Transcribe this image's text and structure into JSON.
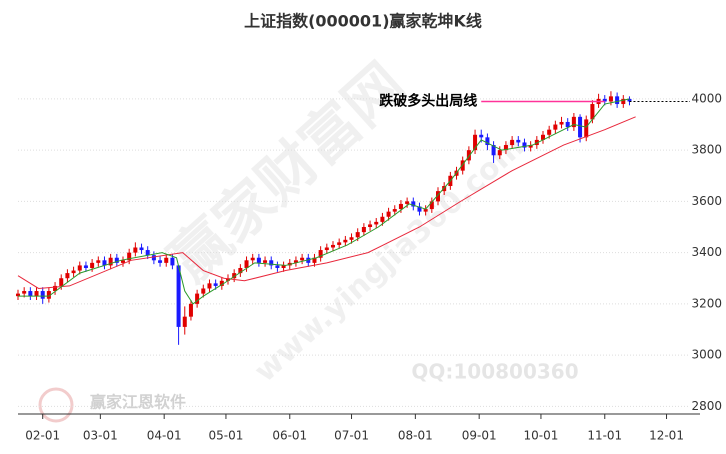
{
  "chart_data": {
    "type": "candlestick",
    "title": "上证指数(000001)赢家乾坤K线",
    "xlim": [
      20,
      360
    ],
    "ylim": [
      2770,
      4230
    ],
    "xticks": [
      {
        "value": 32,
        "label": "02-01"
      },
      {
        "value": 60,
        "label": "03-01"
      },
      {
        "value": 91,
        "label": "04-01"
      },
      {
        "value": 121,
        "label": "05-01"
      },
      {
        "value": 152,
        "label": "06-01"
      },
      {
        "value": 182,
        "label": "07-01"
      },
      {
        "value": 213,
        "label": "08-01"
      },
      {
        "value": 244,
        "label": "09-01"
      },
      {
        "value": 274,
        "label": "10-01"
      },
      {
        "value": 305,
        "label": "11-01"
      },
      {
        "value": 335,
        "label": "12-01"
      }
    ],
    "yticks": [
      2800,
      3000,
      3200,
      3400,
      3600,
      3800,
      4000
    ],
    "grid": true,
    "up_color": "#e00000",
    "down_color": "#1a1aff",
    "x": [
      20,
      23,
      26,
      29,
      32,
      35,
      38,
      41,
      44,
      47,
      50,
      53,
      56,
      59,
      62,
      65,
      68,
      71,
      74,
      77,
      80,
      83,
      86,
      89,
      92,
      95,
      98,
      101,
      104,
      107,
      110,
      113,
      116,
      119,
      122,
      125,
      128,
      131,
      134,
      137,
      140,
      143,
      146,
      149,
      152,
      155,
      158,
      161,
      164,
      167,
      170,
      173,
      176,
      179,
      182,
      185,
      188,
      191,
      194,
      197,
      200,
      203,
      206,
      209,
      212,
      215,
      218,
      221,
      224,
      227,
      230,
      233,
      236,
      239,
      242,
      245,
      248,
      251,
      254,
      257,
      260,
      263,
      266,
      269,
      272,
      275,
      278,
      281,
      284,
      287,
      290,
      293,
      296,
      299,
      302,
      305,
      308,
      311,
      314,
      317
    ],
    "open": [
      3230,
      3240,
      3250,
      3230,
      3250,
      3220,
      3250,
      3270,
      3300,
      3320,
      3330,
      3350,
      3340,
      3360,
      3370,
      3350,
      3380,
      3360,
      3370,
      3400,
      3420,
      3410,
      3390,
      3370,
      3360,
      3380,
      3350,
      3110,
      3150,
      3200,
      3240,
      3260,
      3280,
      3270,
      3290,
      3300,
      3320,
      3340,
      3370,
      3380,
      3360,
      3370,
      3350,
      3340,
      3350,
      3360,
      3370,
      3380,
      3360,
      3380,
      3410,
      3420,
      3430,
      3440,
      3450,
      3460,
      3480,
      3500,
      3510,
      3520,
      3540,
      3560,
      3570,
      3590,
      3600,
      3580,
      3560,
      3570,
      3600,
      3640,
      3660,
      3700,
      3720,
      3760,
      3800,
      3860,
      3850,
      3820,
      3780,
      3800,
      3820,
      3840,
      3830,
      3810,
      3820,
      3840,
      3860,
      3880,
      3900,
      3910,
      3890,
      3930,
      3850,
      3920,
      3980,
      4000,
      3990,
      4010,
      3980,
      4000
    ],
    "high": [
      3255,
      3265,
      3265,
      3265,
      3265,
      3265,
      3285,
      3315,
      3335,
      3345,
      3365,
      3365,
      3375,
      3385,
      3385,
      3395,
      3395,
      3385,
      3415,
      3440,
      3435,
      3425,
      3405,
      3385,
      3395,
      3395,
      3350,
      3190,
      3215,
      3255,
      3275,
      3295,
      3295,
      3305,
      3315,
      3335,
      3355,
      3385,
      3395,
      3395,
      3385,
      3385,
      3365,
      3365,
      3375,
      3385,
      3395,
      3395,
      3395,
      3425,
      3435,
      3445,
      3455,
      3465,
      3475,
      3495,
      3515,
      3525,
      3535,
      3555,
      3575,
      3585,
      3605,
      3615,
      3615,
      3595,
      3585,
      3615,
      3655,
      3675,
      3715,
      3735,
      3775,
      3815,
      3880,
      3880,
      3865,
      3835,
      3815,
      3835,
      3855,
      3855,
      3845,
      3835,
      3855,
      3875,
      3895,
      3915,
      3930,
      3925,
      3945,
      3940,
      3935,
      3995,
      4020,
      4015,
      4030,
      4025,
      4015,
      4010
    ],
    "low": [
      3215,
      3225,
      3215,
      3215,
      3200,
      3205,
      3235,
      3255,
      3285,
      3305,
      3315,
      3325,
      3325,
      3345,
      3335,
      3335,
      3345,
      3345,
      3355,
      3385,
      3395,
      3375,
      3355,
      3345,
      3345,
      3335,
      3040,
      3080,
      3135,
      3185,
      3225,
      3245,
      3255,
      3255,
      3275,
      3285,
      3305,
      3325,
      3355,
      3345,
      3345,
      3335,
      3325,
      3325,
      3335,
      3345,
      3355,
      3345,
      3345,
      3365,
      3395,
      3405,
      3415,
      3425,
      3435,
      3445,
      3465,
      3485,
      3495,
      3505,
      3525,
      3545,
      3555,
      3575,
      3565,
      3545,
      3545,
      3555,
      3585,
      3625,
      3645,
      3685,
      3705,
      3745,
      3785,
      3830,
      3800,
      3750,
      3765,
      3785,
      3805,
      3815,
      3795,
      3795,
      3805,
      3825,
      3845,
      3865,
      3885,
      3875,
      3875,
      3830,
      3835,
      3905,
      3965,
      3975,
      3975,
      3965,
      3965,
      3975
    ],
    "close": [
      3240,
      3250,
      3230,
      3250,
      3220,
      3250,
      3270,
      3300,
      3320,
      3330,
      3350,
      3340,
      3360,
      3370,
      3350,
      3380,
      3360,
      3370,
      3400,
      3420,
      3410,
      3390,
      3370,
      3360,
      3380,
      3350,
      3110,
      3150,
      3200,
      3240,
      3260,
      3280,
      3270,
      3290,
      3300,
      3320,
      3340,
      3370,
      3380,
      3360,
      3370,
      3350,
      3340,
      3350,
      3360,
      3370,
      3380,
      3360,
      3380,
      3410,
      3420,
      3430,
      3440,
      3450,
      3460,
      3480,
      3500,
      3510,
      3520,
      3540,
      3560,
      3570,
      3590,
      3600,
      3580,
      3560,
      3570,
      3600,
      3640,
      3660,
      3700,
      3720,
      3760,
      3800,
      3860,
      3850,
      3820,
      3780,
      3800,
      3820,
      3840,
      3830,
      3810,
      3820,
      3840,
      3860,
      3880,
      3900,
      3910,
      3890,
      3930,
      3850,
      3920,
      3980,
      4000,
      3990,
      4010,
      3980,
      4000,
      3990
    ],
    "moving_averages": [
      {
        "color": "#e8283c",
        "x": [
          20,
          30,
          45,
          75,
          100,
          110,
          120,
          130,
          150,
          170,
          190,
          215,
          235,
          260,
          285,
          305,
          320
        ],
        "values": [
          3310,
          3260,
          3270,
          3370,
          3400,
          3330,
          3300,
          3290,
          3330,
          3360,
          3400,
          3500,
          3600,
          3720,
          3820,
          3880,
          3930
        ]
      },
      {
        "color": "#2a9a2a",
        "x": [
          20,
          35,
          50,
          70,
          90,
          97,
          101,
          105,
          110,
          120,
          135,
          150,
          165,
          180,
          195,
          210,
          218,
          230,
          245,
          255,
          270,
          290,
          296,
          305,
          317
        ],
        "values": [
          3230,
          3230,
          3320,
          3370,
          3400,
          3380,
          3250,
          3200,
          3230,
          3280,
          3360,
          3350,
          3380,
          3430,
          3500,
          3590,
          3570,
          3680,
          3840,
          3800,
          3820,
          3900,
          3890,
          3980,
          4000
        ]
      }
    ],
    "annotation": {
      "text": "跌破多头出局线",
      "value": 3990,
      "x_start": 245,
      "x_end": 305,
      "color": "#ff3399"
    },
    "watermarks": [
      "赢家财富网",
      "www.yingjia360.com",
      "QQ:100800360",
      "赢家江恩软件"
    ]
  }
}
